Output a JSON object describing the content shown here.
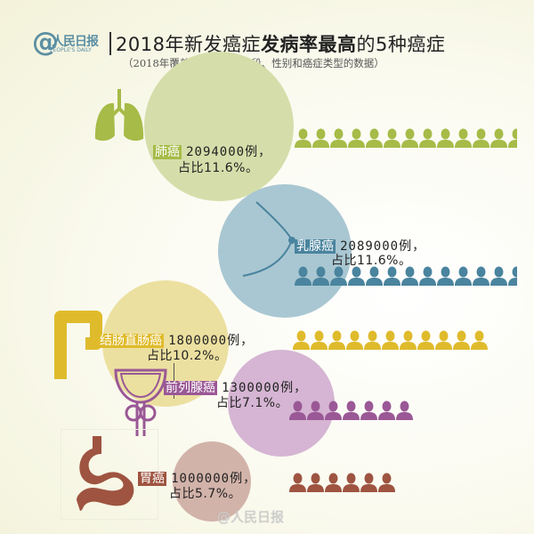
{
  "header": {
    "logo_text": "人民日报",
    "logo_en": "PEOPLE'S DAILY",
    "title_pre": "2018年新发癌症",
    "title_bold": "发病率最高",
    "title_post": "的5种癌症",
    "subtitle": "（2018年覆盖全球所有年龄段、性别和癌症类型的数据）"
  },
  "watermark": "@人民日报",
  "chart_data": {
    "type": "bar",
    "categories": [
      "肺癌",
      "乳腺癌",
      "结肠直肠癌",
      "前列腺癌",
      "胃癌"
    ],
    "values": [
      2094000,
      2089000,
      1800000,
      1300000,
      1000000
    ],
    "percent": [
      11.6,
      11.6,
      10.2,
      7.1,
      5.7
    ],
    "icon_counts": [
      12.5,
      12.5,
      11,
      7,
      6
    ],
    "colors": [
      "#a6bb48",
      "#4a849e",
      "#dfbb2c",
      "#9a5896",
      "#9e5440"
    ],
    "circle_colors": [
      "#d5deaa",
      "#a9c7d2",
      "#ece0a0",
      "#d5b5d3",
      "#d2b3a9"
    ]
  },
  "items": [
    {
      "name": "肺癌",
      "count": "2094000例，",
      "share": "占比11.6%。",
      "icon": "lungs-icon"
    },
    {
      "name": "乳腺癌",
      "count": "2089000例，",
      "share": "占比11.6%。",
      "icon": "breast-icon"
    },
    {
      "name": "结肠直肠癌",
      "count": "1800000例，",
      "share": "占比10.2%。",
      "icon": "colon-icon"
    },
    {
      "name": "前列腺癌",
      "count": "1300000例，",
      "share": "占比7.1%。",
      "icon": "prostate-icon"
    },
    {
      "name": "胃癌",
      "count": "1000000例，",
      "share": "占比5.7%。",
      "icon": "stomach-icon"
    }
  ]
}
